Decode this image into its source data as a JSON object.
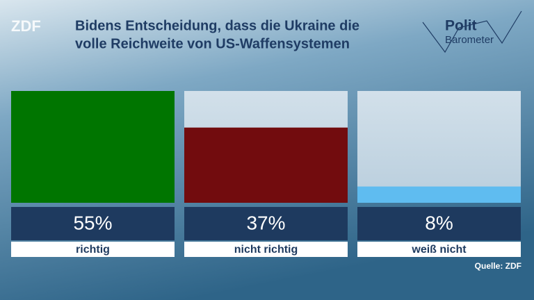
{
  "chart_data": {
    "type": "bar",
    "title": [
      "Bidens Entscheidung, dass die Ukraine die",
      "volle Reichweite von US-Waffensystemen"
    ],
    "categories": [
      "richtig",
      "nicht richtig",
      "weiß nicht"
    ],
    "values": [
      55,
      37,
      8
    ],
    "value_labels": [
      "55%",
      "37%",
      "8%"
    ],
    "colors": [
      "#007500",
      "#720c0e",
      "#5fbcf0"
    ],
    "ylim": [
      0,
      55
    ],
    "source": "Quelle: ZDF"
  },
  "branding": {
    "broadcaster": "ZDF",
    "program": [
      "Polit",
      "Barometer"
    ]
  }
}
